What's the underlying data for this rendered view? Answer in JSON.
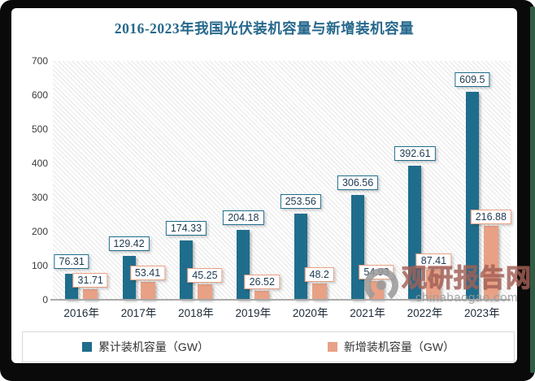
{
  "chart_data": {
    "type": "bar",
    "title": "2016-2023年我国光伏装机容量与新增装机容量",
    "categories": [
      "2016年",
      "2017年",
      "2018年",
      "2019年",
      "2020年",
      "2021年",
      "2022年",
      "2023年"
    ],
    "series": [
      {
        "name": "累计装机容量（GW）",
        "color": "#1f6d8c",
        "values": [
          76.31,
          129.42,
          174.33,
          204.18,
          253.56,
          306.56,
          392.61,
          609.5
        ]
      },
      {
        "name": "新增装机容量（GW）",
        "color": "#e8a185",
        "values": [
          31.71,
          53.41,
          45.25,
          26.52,
          48.2,
          54.93,
          87.41,
          216.88
        ]
      }
    ],
    "ylim": [
      0,
      700
    ],
    "yticks": [
      0,
      100,
      200,
      300,
      400,
      500,
      600,
      700
    ],
    "grid": false,
    "legend_position": "bottom",
    "plot_background": "diagonal-hatch"
  },
  "colors": {
    "title": "#26688c",
    "series_cumulative": "#1f6d8c",
    "series_new": "#e8a185",
    "axis_line": "#a9a9a9",
    "legend_border": "#d9d9d9",
    "watermark_red": "#a85c50",
    "frame_black": "#0a0a0a",
    "frame_green_edge": "#315c44"
  },
  "watermark": {
    "logo_icon": "swirl-circle",
    "text": "观研报告网",
    "subtext": "chinabaogao.com"
  }
}
